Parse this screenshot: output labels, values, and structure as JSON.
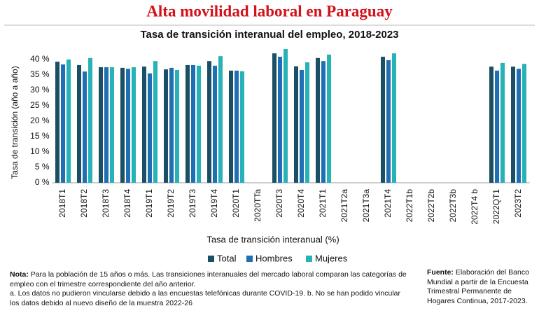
{
  "chart_data": {
    "type": "bar",
    "headline": "Alta movilidad laboral en Paraguay",
    "title": "Tasa de transición interanual del empleo, 2018-2023",
    "y_label": "Tasa de transición (año a año)",
    "x_label": "Tasa de transición interanual (%)",
    "categories": [
      "2018T1",
      "2018T2",
      "2018T3",
      "2018T4",
      "2019T1",
      "2019T2",
      "2019T3",
      "2019T4",
      "2020T1",
      "2020TTa",
      "2020T3",
      "2020T4",
      "2021T1",
      "2021T2a",
      "2021T3a",
      "2021T4",
      "2022T1b",
      "2022T2b",
      "2022T3b",
      "2022T4 b",
      "2022QT1",
      "2023T2"
    ],
    "series": [
      {
        "name": "Total",
        "color": "#1b4f63",
        "values": [
          39.3,
          38.2,
          37.5,
          37.3,
          37.7,
          36.8,
          38.2,
          39.5,
          36.4,
          null,
          42,
          37.8,
          40.5,
          null,
          null,
          40.9,
          null,
          null,
          null,
          null,
          37.7,
          37.7
        ]
      },
      {
        "name": "Hombres",
        "color": "#1f6fb5",
        "values": [
          38.4,
          36.1,
          37.5,
          37,
          35.5,
          37.3,
          38.2,
          38,
          36.4,
          null,
          40.9,
          36.6,
          39.5,
          null,
          null,
          39.8,
          null,
          null,
          null,
          null,
          36.4,
          37
        ]
      },
      {
        "name": "Mujeres",
        "color": "#26b2b7",
        "values": [
          40,
          40.5,
          37.5,
          37.5,
          39.5,
          36.6,
          38,
          41.1,
          36.2,
          null,
          43.4,
          39.1,
          41.6,
          null,
          null,
          42,
          null,
          null,
          null,
          null,
          38.9,
          38.6
        ]
      }
    ],
    "ylim": [
      0,
      45
    ],
    "yticks": [
      {
        "value": 0,
        "label": "0 %"
      },
      {
        "value": 5,
        "label": "5 %"
      },
      {
        "value": 10,
        "label": "10 %"
      },
      {
        "value": 15,
        "label": "15 %"
      },
      {
        "value": 20,
        "label": "20 %"
      },
      {
        "value": 25,
        "label": "25 %"
      },
      {
        "value": 30,
        "label": "30 %"
      },
      {
        "value": 35,
        "label": "35 %"
      },
      {
        "value": 40,
        "label": "40 %"
      }
    ],
    "grid": false,
    "note_label": "Nota:",
    "note": "Para la población de 15 años o más. Las transiciones interanuales del mercado laboral comparan las categorías de empleo con el trimestre correspondiente del año anterior.",
    "footnote": "a. Los datos no pudieron vincularse debido a las encuestas telefónicas durante COVID-19. b. No se han podido vincular los datos debido al nuevo diseño de la muestra 2022-26",
    "source_label": "Fuente:",
    "source": "Elaboración del Banco Mundial a partir de la Encuesta Trimestral Permanente de Hogares Continua, 2017-2023."
  }
}
